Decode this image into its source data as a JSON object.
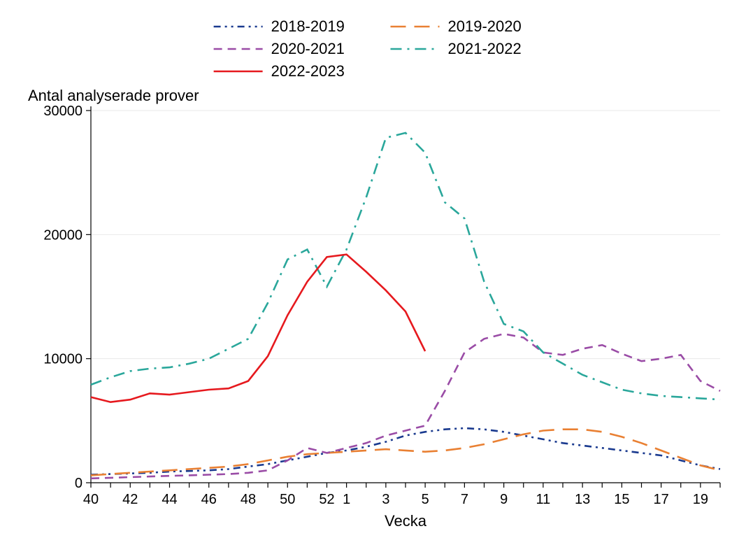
{
  "chart": {
    "type": "line",
    "background_color": "#ffffff",
    "plot_background_color": "#ffffff",
    "grid_color": "#eaeaea",
    "axis_color": "#000000",
    "font_family": "Arial, Helvetica, sans-serif",
    "subtitle": "Antal analyserade prover",
    "subtitle_fontsize": 22,
    "xlabel": "Vecka",
    "xlabel_fontsize": 22,
    "ylabel": "",
    "tick_fontsize": 20,
    "ylim": [
      0,
      30000
    ],
    "ytick_step": 10000,
    "yticks": [
      0,
      10000,
      20000,
      30000
    ],
    "x_categories": [
      "40",
      "41",
      "42",
      "43",
      "44",
      "45",
      "46",
      "47",
      "48",
      "49",
      "50",
      "51",
      "52",
      "1",
      "2",
      "3",
      "4",
      "5",
      "6",
      "7",
      "8",
      "9",
      "10",
      "11",
      "12",
      "13",
      "14",
      "15",
      "16",
      "17",
      "18",
      "19",
      "20"
    ],
    "x_tick_labels": [
      "40",
      "42",
      "44",
      "46",
      "48",
      "50",
      "52",
      "1",
      "3",
      "5",
      "7",
      "9",
      "11",
      "13",
      "15",
      "17",
      "19"
    ],
    "x_tick_label_indices": [
      0,
      2,
      4,
      6,
      8,
      10,
      12,
      13,
      15,
      17,
      19,
      21,
      23,
      25,
      27,
      29,
      31
    ],
    "legend": {
      "items": [
        {
          "label": "2018-2019",
          "color": "#1a3a8f",
          "dash": "dash-dot-dot",
          "width": 2.6
        },
        {
          "label": "2019-2020",
          "color": "#e98033",
          "dash": "long-dash",
          "width": 2.6
        },
        {
          "label": "2020-2021",
          "color": "#9a4ca6",
          "dash": "dash",
          "width": 2.6
        },
        {
          "label": "2021-2022",
          "color": "#2aa79b",
          "dash": "dash-dot",
          "width": 2.6
        },
        {
          "label": "2022-2023",
          "color": "#e6191e",
          "dash": "solid",
          "width": 2.6
        }
      ],
      "label_fontsize": 22
    },
    "series": [
      {
        "name": "2018-2019",
        "color": "#1a3a8f",
        "dash": "dash-dot-dot",
        "width": 2.6,
        "values": [
          650,
          700,
          750,
          800,
          900,
          950,
          1000,
          1100,
          1300,
          1500,
          1800,
          2100,
          2400,
          2600,
          2900,
          3300,
          3800,
          4100,
          4300,
          4400,
          4300,
          4100,
          3800,
          3500,
          3200,
          3000,
          2800,
          2600,
          2400,
          2200,
          1800,
          1400,
          1100
        ]
      },
      {
        "name": "2019-2020",
        "color": "#e98033",
        "dash": "long-dash",
        "width": 2.6,
        "values": [
          600,
          700,
          800,
          900,
          1000,
          1100,
          1200,
          1300,
          1500,
          1800,
          2100,
          2300,
          2400,
          2500,
          2600,
          2700,
          2600,
          2500,
          2600,
          2800,
          3100,
          3500,
          3900,
          4200,
          4300,
          4300,
          4100,
          3700,
          3200,
          2600,
          2000,
          1400,
          1000
        ]
      },
      {
        "name": "2020-2021",
        "color": "#9a4ca6",
        "dash": "dash",
        "width": 2.6,
        "values": [
          350,
          400,
          450,
          500,
          550,
          600,
          650,
          700,
          800,
          1000,
          1800,
          2800,
          2400,
          2800,
          3200,
          3800,
          4200,
          4600,
          7400,
          10500,
          11600,
          12000,
          11700,
          10500,
          10300,
          10800,
          11100,
          10400,
          9800,
          10000,
          10300,
          8200,
          7400
        ]
      },
      {
        "name": "2021-2022",
        "color": "#2aa79b",
        "dash": "dash-dot",
        "width": 2.6,
        "values": [
          7900,
          8500,
          9000,
          9200,
          9300,
          9600,
          10000,
          10800,
          11600,
          14500,
          18000,
          18800,
          15800,
          18800,
          23000,
          27800,
          28200,
          26600,
          22600,
          21300,
          16200,
          12800,
          12200,
          10500,
          9600,
          8700,
          8100,
          7500,
          7200,
          7000,
          6900,
          6800,
          6700
        ]
      },
      {
        "name": "2022-2023",
        "color": "#e6191e",
        "dash": "solid",
        "width": 2.6,
        "values": [
          6900,
          6500,
          6700,
          7200,
          7100,
          7300,
          7500,
          7600,
          8200,
          10200,
          13500,
          16200,
          18200,
          18400,
          17000,
          15500,
          13800,
          10600
        ]
      }
    ]
  }
}
